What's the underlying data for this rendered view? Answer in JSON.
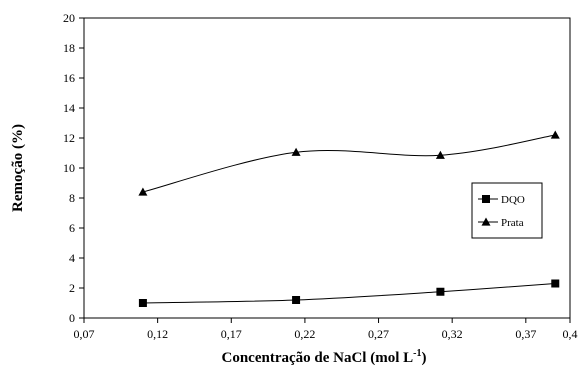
{
  "chart_data": {
    "type": "line",
    "title": "",
    "xlabel": "Concentração de NaCl (mol L",
    "xlabel_sup": "-1",
    "xlabel_close": ")",
    "ylabel": "Remoção (%)",
    "xlim": [
      0.07,
      0.4
    ],
    "ylim": [
      0,
      20
    ],
    "x_ticks": [
      0.07,
      0.12,
      0.17,
      0.22,
      0.27,
      0.32,
      0.37,
      0.4
    ],
    "x_tick_labels": [
      "0,07",
      "0,12",
      "0,17",
      "0,22",
      "0,27",
      "0,32",
      "0,37",
      "0,4"
    ],
    "y_ticks": [
      0,
      2,
      4,
      6,
      8,
      10,
      12,
      14,
      16,
      18,
      20
    ],
    "y_tick_labels": [
      "0",
      "2",
      "4",
      "6",
      "8",
      "10",
      "12",
      "14",
      "16",
      "18",
      "20"
    ],
    "grid": false,
    "legend_position": "right",
    "series": [
      {
        "name": "DQO",
        "marker": "square",
        "color": "#000000",
        "x": [
          0.11,
          0.214,
          0.312,
          0.39
        ],
        "y": [
          1.0,
          1.2,
          1.75,
          2.3
        ]
      },
      {
        "name": "Prata",
        "marker": "triangle",
        "color": "#000000",
        "x": [
          0.11,
          0.214,
          0.312,
          0.39
        ],
        "y": [
          8.4,
          11.05,
          10.85,
          12.2
        ]
      }
    ]
  }
}
